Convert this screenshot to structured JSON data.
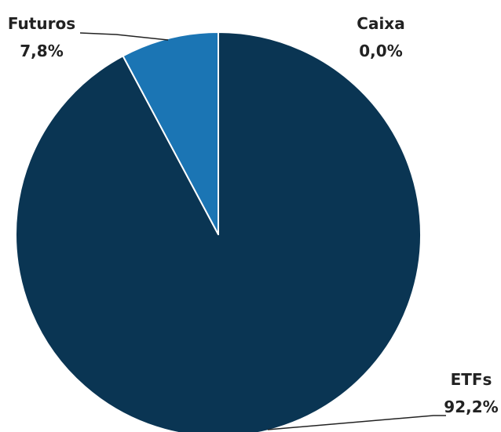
{
  "chart_data": {
    "type": "pie",
    "slices": [
      {
        "label": "Caixa",
        "value": 0.0,
        "display": "0,0%",
        "color": "#1b75b4"
      },
      {
        "label": "ETFs",
        "value": 92.2,
        "display": "92,2%",
        "color": "#0a3553"
      },
      {
        "label": "Futuros",
        "value": 7.8,
        "display": "7,8%",
        "color": "#1b75b4"
      }
    ],
    "slice_border_color": "#ffffff",
    "leader_line_color": "#222222",
    "start_angle": "12 o'clock",
    "direction": "clockwise"
  }
}
